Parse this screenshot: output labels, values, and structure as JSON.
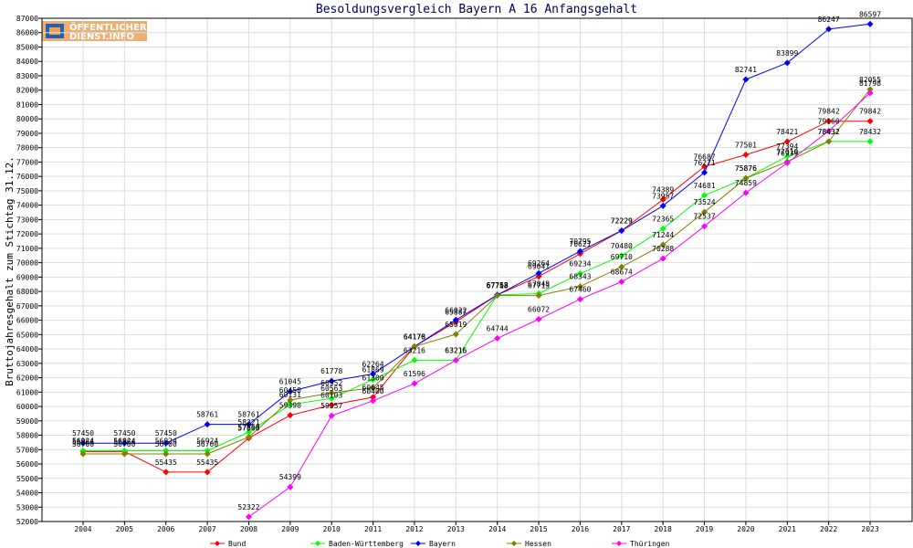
{
  "chart_data": {
    "type": "line",
    "title": "Besoldungsvergleich Bayern A 16 Anfangsgehalt",
    "xlabel": "",
    "ylabel": "Bruttojahresgehalt zum Stichtag 31.12.",
    "ylim": [
      52000,
      87000
    ],
    "ytick_step": 1000,
    "grid": true,
    "legend_position": "bottom",
    "categories": [
      "2004",
      "2005",
      "2006",
      "2007",
      "2008",
      "2009",
      "2010",
      "2011",
      "2012",
      "2013",
      "2014",
      "2015",
      "2016",
      "2017",
      "2018",
      "2019",
      "2020",
      "2021",
      "2022",
      "2023"
    ],
    "series": [
      {
        "name": "Bund",
        "color": "#ff0000",
        "values": [
          56864,
          56864,
          55435,
          55435,
          57800,
          59390,
          60103,
          60645,
          64176,
          65887,
          67758,
          69041,
          70621,
          72229,
          74389,
          76687,
          77501,
          78421,
          79842,
          79842
        ]
      },
      {
        "name": "Baden-Württemberg",
        "color": "#00ff00",
        "values": [
          56924,
          56924,
          56924,
          56924,
          58221,
          60131,
          60563,
          61869,
          63216,
          63216,
          67758,
          67848,
          69234,
          70480,
          72365,
          74681,
          75876,
          77394,
          78432,
          78432
        ]
      },
      {
        "name": "Bayern",
        "color": "#0000ff",
        "values": [
          57450,
          57450,
          57450,
          58761,
          58761,
          61045,
          61778,
          62264,
          64170,
          66022,
          67762,
          69264,
          70795,
          72229,
          73957,
          76271,
          82741,
          83899,
          86247,
          86597
        ]
      },
      {
        "name": "Hessen",
        "color": "#808000",
        "values": [
          56700,
          56700,
          56700,
          56700,
          57868,
          60450,
          60952,
          61300,
          64170,
          65019,
          67713,
          67713,
          68343,
          69710,
          71244,
          73524,
          75876,
          77019,
          78432,
          82055
        ]
      },
      {
        "name": "Thüringen",
        "color": "#ff00ff",
        "values": [
          null,
          null,
          null,
          null,
          52322,
          54399,
          59357,
          60400,
          61596,
          63215,
          64744,
          66072,
          67460,
          68674,
          70288,
          72537,
          74859,
          76939,
          79160,
          81798
        ]
      }
    ]
  },
  "logo": {
    "line1": "ÖFFENTLICHER",
    "line2": "DIENST.INFO"
  }
}
